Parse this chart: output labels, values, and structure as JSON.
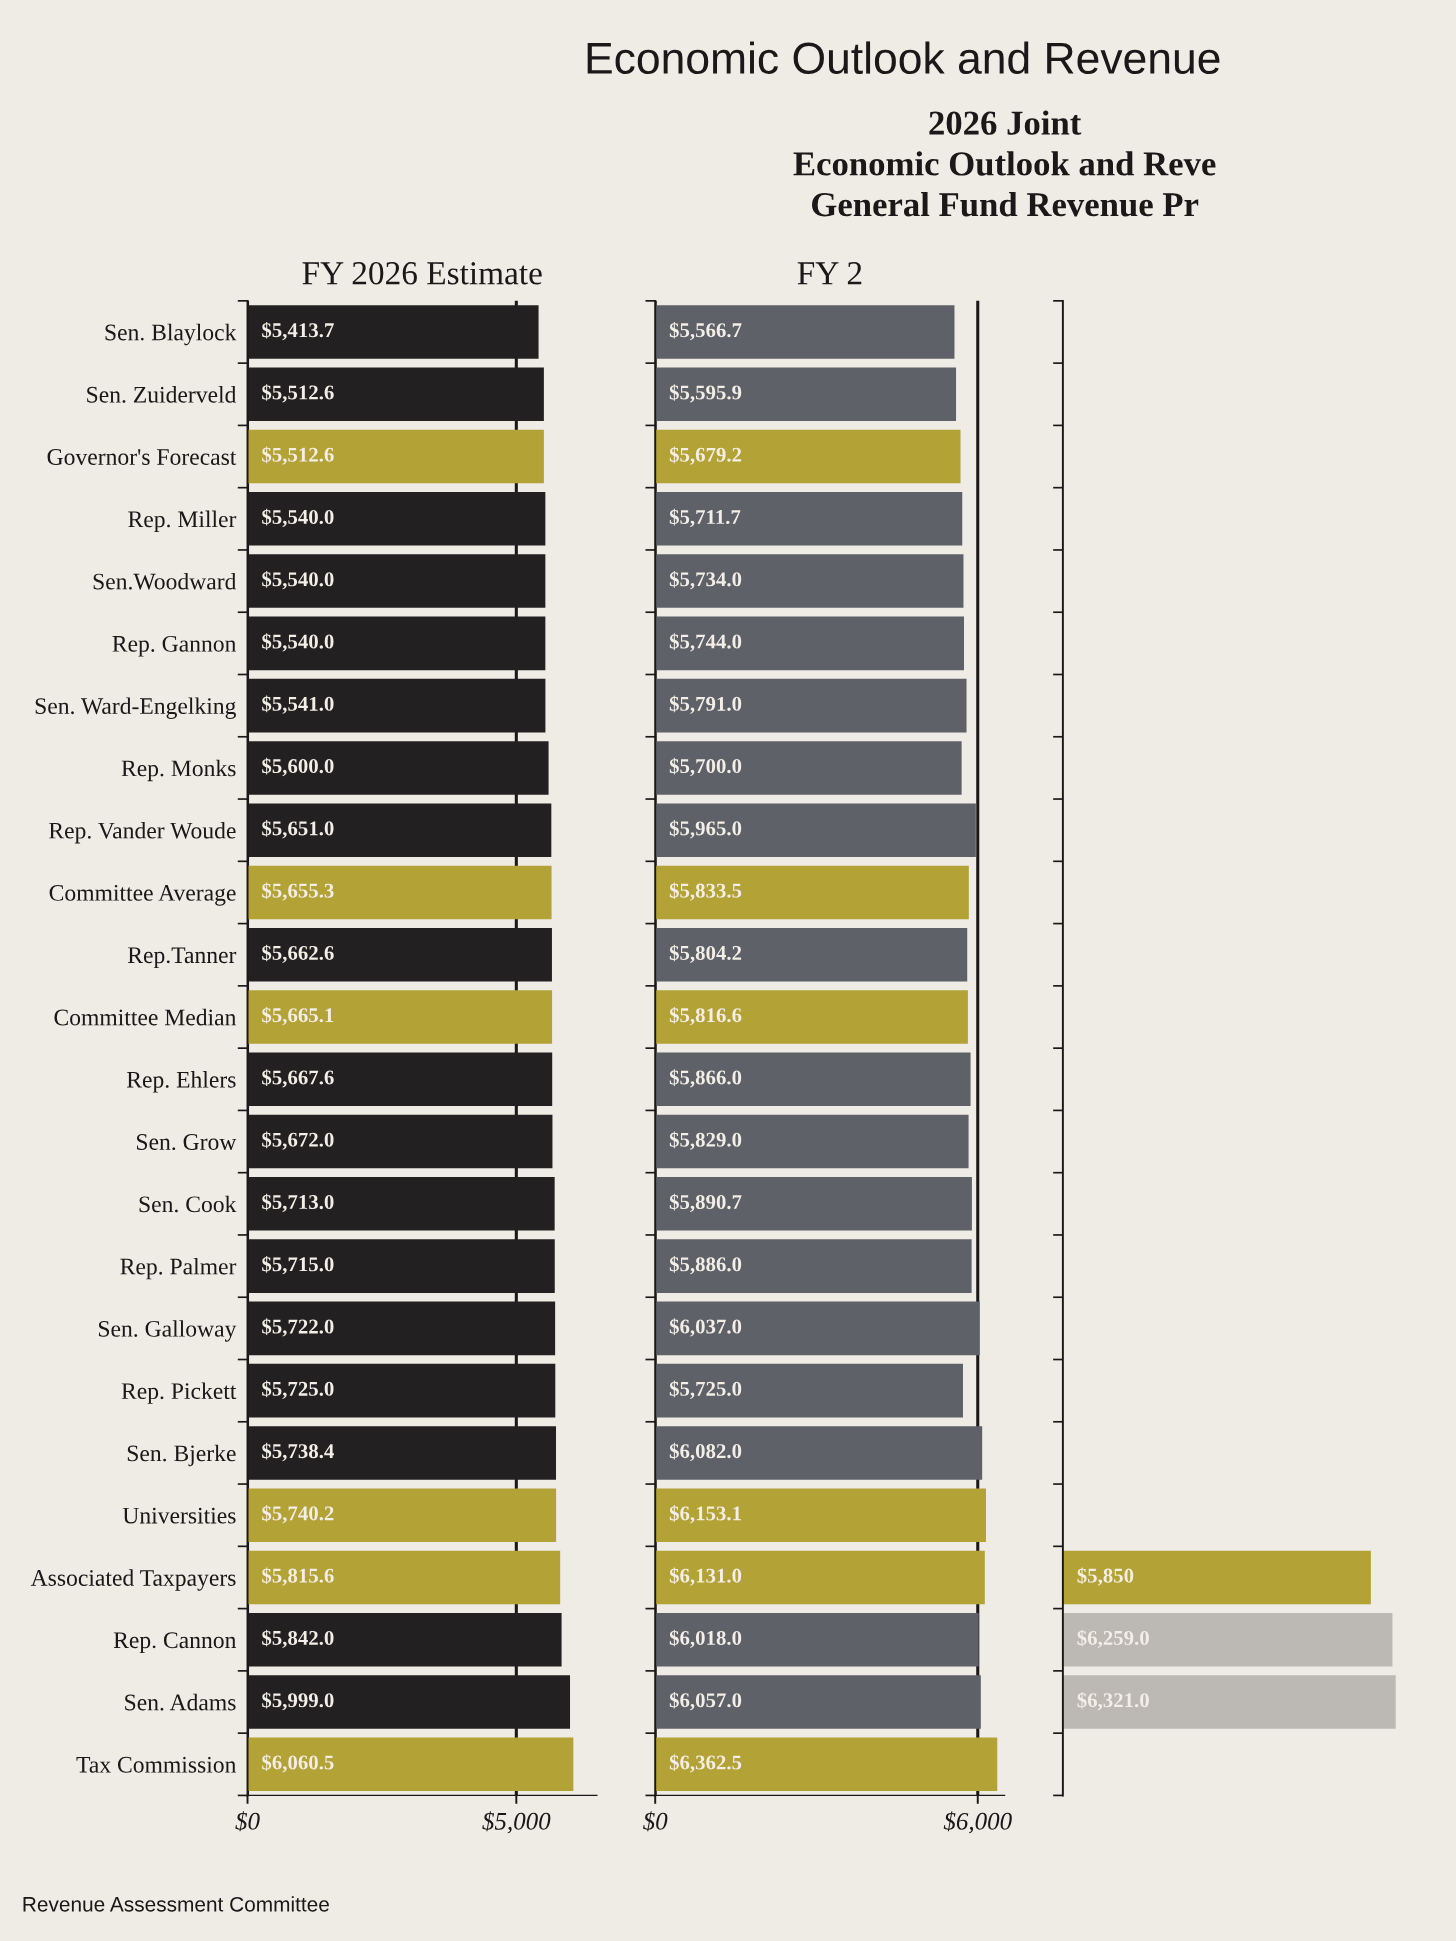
{
  "chart_data": [
    {
      "type": "bar",
      "orientation": "horizontal",
      "title": "FY 2026 Estimate",
      "categories": [
        "Sen. Blaylock",
        "Sen. Zuiderveld",
        "Governor's Forecast",
        "Rep. Miller",
        "Sen.Woodward",
        "Rep. Gannon",
        "Sen. Ward-Engelking",
        "Rep. Monks",
        "Rep. Vander Woude",
        "Committee Average",
        "Rep.Tanner",
        "Committee Median",
        "Rep. Ehlers",
        "Sen. Grow",
        "Sen. Cook",
        "Rep. Palmer",
        "Sen. Galloway",
        "Rep. Pickett",
        "Sen. Bjerke",
        "Universities",
        "Associated Taxpayers",
        "Rep. Cannon",
        "Sen. Adams",
        "Tax Commission"
      ],
      "values": [
        5413.7,
        5512.6,
        5512.6,
        5540.0,
        5540.0,
        5540.0,
        5541.0,
        5600.0,
        5651.0,
        5655.3,
        5662.6,
        5665.1,
        5667.6,
        5672.0,
        5713.0,
        5715.0,
        5722.0,
        5725.0,
        5738.4,
        5740.2,
        5815.6,
        5842.0,
        5999.0,
        6060.5
      ],
      "value_labels": [
        "$5,413.7",
        "$5,512.6",
        "$5,512.6",
        "$5,540.0",
        "$5,540.0",
        "$5,540.0",
        "$5,541.0",
        "$5,600.0",
        "$5,651.0",
        "$5,655.3",
        "$5,662.6",
        "$5,665.1",
        "$5,667.6",
        "$5,672.0",
        "$5,713.0",
        "$5,715.0",
        "$5,722.0",
        "$5,725.0",
        "$5,738.4",
        "$5,740.2",
        "$5,815.6",
        "$5,842.0",
        "$5,999.0",
        "$6,060.5"
      ],
      "colors": [
        "#232021",
        "#232021",
        "#b3a236",
        "#232021",
        "#232021",
        "#232021",
        "#232021",
        "#232021",
        "#232021",
        "#b3a236",
        "#232021",
        "#b3a236",
        "#232021",
        "#232021",
        "#232021",
        "#232021",
        "#232021",
        "#232021",
        "#232021",
        "#b3a236",
        "#b3a236",
        "#232021",
        "#232021",
        "#b3a236"
      ],
      "xlim": [
        0,
        6500
      ],
      "xticks": [
        {
          "value": 0,
          "label": "$0"
        },
        {
          "value": 5000,
          "label": "$5,000"
        }
      ],
      "grid": "x",
      "annotations": [
        "Economic Outlook and Revenue",
        "2026 Joint",
        "Economic Outlook and Reve",
        "General Fund Revenue Pr",
        "Revenue Assessment Committee"
      ]
    },
    {
      "type": "bar",
      "orientation": "horizontal",
      "title": "FY 2",
      "categories": [
        null,
        null,
        null,
        null,
        null,
        null,
        null,
        null,
        null,
        null,
        null,
        null,
        null,
        null,
        null,
        null,
        null,
        null,
        null,
        null,
        null,
        null,
        null,
        null
      ],
      "values": [
        5566.7,
        5595.9,
        5679.2,
        5711.7,
        5734.0,
        5744.0,
        5791.0,
        5700.0,
        5965.0,
        5833.5,
        5804.2,
        5816.6,
        5866.0,
        5829.0,
        5890.7,
        5886.0,
        6037.0,
        5725.0,
        6082.0,
        6153.1,
        6131.0,
        6018.0,
        6057.0,
        6362.5
      ],
      "value_labels": [
        "$5,566.7",
        "$5,595.9",
        "$5,679.2",
        "$5,711.7",
        "$5,734.0",
        "$5,744.0",
        "$5,791.0",
        "$5,700.0",
        "$5,965.0",
        "$5,833.5",
        "$5,804.2",
        "$5,816.6",
        "$5,866.0",
        "$5,829.0",
        "$5,890.7",
        "$5,886.0",
        "$6,037.0",
        "$5,725.0",
        "$6,082.0",
        "$6,153.1",
        "$6,131.0",
        "$6,018.0",
        "$6,057.0",
        "$6,362.5"
      ],
      "colors": [
        "#5f6168",
        "#5f6168",
        "#b3a236",
        "#5f6168",
        "#5f6168",
        "#5f6168",
        "#5f6168",
        "#5f6168",
        "#5f6168",
        "#b3a236",
        "#5f6168",
        "#b3a236",
        "#5f6168",
        "#5f6168",
        "#5f6168",
        "#5f6168",
        "#5f6168",
        "#5f6168",
        "#5f6168",
        "#b3a236",
        "#b3a236",
        "#5f6168",
        "#5f6168",
        "#b3a236"
      ],
      "xlim": [
        0,
        6500
      ],
      "xticks": [
        {
          "value": 0,
          "label": "$0"
        },
        {
          "value": 6000,
          "label": "$6,000"
        }
      ],
      "grid": "x",
      "tick_labels": "x"
    },
    {
      "type": "bar",
      "orientation": "horizontal",
      "categories": [
        null,
        null,
        null,
        null,
        null,
        null,
        null,
        null,
        null,
        null,
        null,
        null,
        null,
        null,
        null,
        null,
        null,
        null,
        null,
        null,
        null,
        null,
        null,
        null
      ],
      "values": [
        null,
        null,
        null,
        null,
        null,
        null,
        null,
        null,
        null,
        null,
        null,
        null,
        null,
        null,
        null,
        null,
        null,
        null,
        null,
        null,
        5850,
        6259.0,
        6321.0,
        null
      ],
      "value_labels": [
        null,
        null,
        null,
        null,
        null,
        null,
        null,
        null,
        null,
        null,
        null,
        null,
        null,
        null,
        null,
        null,
        null,
        null,
        null,
        null,
        "$5,850",
        "$6,259.0",
        "$6,321.0",
        null
      ],
      "colors": [
        "#bcb8b4",
        "#bcb8b4",
        "#b3a236",
        "#bcb8b4",
        "#bcb8b4",
        "#bcb8b4",
        "#bcb8b4",
        "#bcb8b4",
        "#bcb8b4",
        "#b3a236",
        "#bcb8b4",
        "#b3a236",
        "#bcb8b4",
        "#bcb8b4",
        "#bcb8b4",
        "#bcb8b4",
        "#bcb8b4",
        "#bcb8b4",
        "#bcb8b4",
        "#b3a236",
        "#b3a236",
        "#bcb8b4",
        "#bcb8b4",
        "#b3a236"
      ],
      "tick_labels": false
    }
  ]
}
